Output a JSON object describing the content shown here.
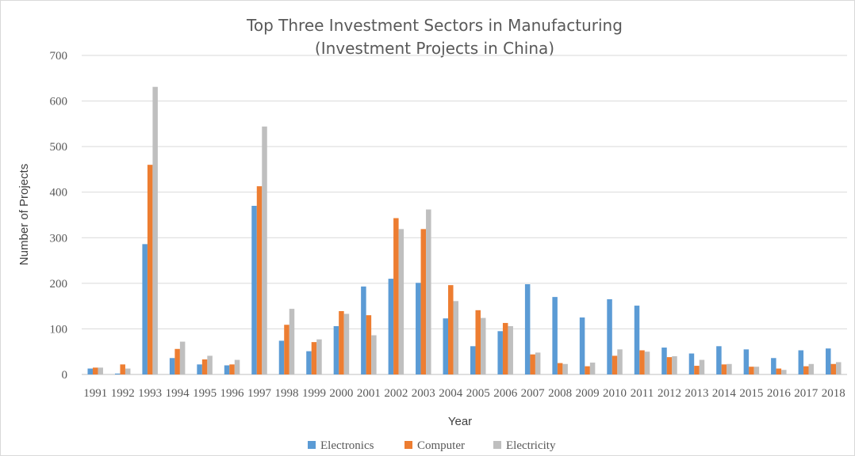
{
  "chart_data": {
    "type": "bar",
    "title": "Top Three Investment Sectors in Manufacturing",
    "subtitle": "(Investment Projects in China)",
    "xlabel": "Year",
    "ylabel": "Number of Projects",
    "ylim": [
      0,
      700
    ],
    "yticks": [
      0,
      100,
      200,
      300,
      400,
      500,
      600,
      700
    ],
    "grid": true,
    "legend_position": "bottom",
    "categories": [
      "1991",
      "1992",
      "1993",
      "1994",
      "1995",
      "1996",
      "1997",
      "1998",
      "1999",
      "2000",
      "2001",
      "2002",
      "2003",
      "2004",
      "2005",
      "2006",
      "2007",
      "2008",
      "2009",
      "2010",
      "2011",
      "2012",
      "2013",
      "2014",
      "2015",
      "2016",
      "2017",
      "2018"
    ],
    "series": [
      {
        "name": "Electronics",
        "color": "#5b9bd5",
        "values": [
          13,
          2,
          286,
          36,
          22,
          20,
          370,
          74,
          51,
          106,
          193,
          210,
          201,
          123,
          62,
          95,
          198,
          170,
          125,
          165,
          151,
          59,
          46,
          62,
          55,
          36,
          53,
          57
        ]
      },
      {
        "name": "Computer",
        "color": "#ed7d31",
        "values": [
          15,
          22,
          460,
          56,
          33,
          22,
          413,
          109,
          71,
          139,
          130,
          343,
          319,
          196,
          141,
          113,
          44,
          25,
          18,
          41,
          53,
          38,
          19,
          22,
          17,
          13,
          18,
          23
        ]
      },
      {
        "name": "Electricity",
        "color": "#bfbfbf",
        "values": [
          15,
          13,
          631,
          72,
          41,
          32,
          544,
          144,
          77,
          133,
          86,
          319,
          362,
          161,
          124,
          106,
          48,
          23,
          26,
          55,
          50,
          40,
          32,
          23,
          17,
          10,
          23,
          27
        ]
      }
    ]
  }
}
